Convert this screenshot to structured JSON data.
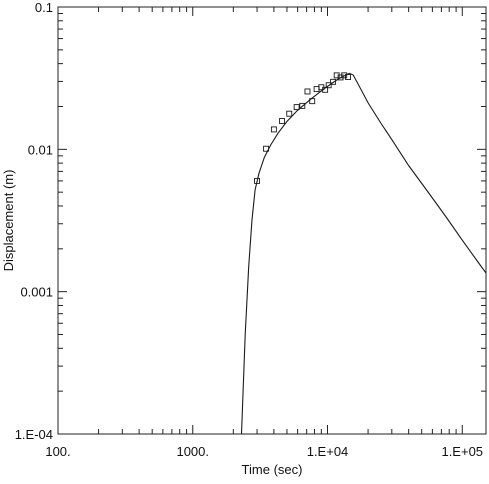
{
  "chart_data": {
    "type": "scatter",
    "xlabel": "Time (sec)",
    "ylabel": "Displacement (m)",
    "xscale": "log",
    "yscale": "log",
    "xlim": [
      100,
      150000
    ],
    "ylim": [
      0.0001,
      0.1
    ],
    "grid": false,
    "x_ticks": [
      {
        "value": 100,
        "label": "100."
      },
      {
        "value": 1000,
        "label": "1000."
      },
      {
        "value": 10000,
        "label": "1.E+04"
      },
      {
        "value": 100000,
        "label": "1.E+05"
      }
    ],
    "y_ticks": [
      {
        "value": 0.0001,
        "label": "1.E-04"
      },
      {
        "value": 0.001,
        "label": "0.001"
      },
      {
        "value": 0.01,
        "label": "0.01"
      },
      {
        "value": 0.1,
        "label": "0.1"
      }
    ],
    "series": [
      {
        "style": "markers",
        "marker": "open-square",
        "x": [
          3000,
          3500,
          4000,
          4600,
          5200,
          5900,
          6500,
          7100,
          7700,
          8300,
          9000,
          9600,
          10200,
          11000,
          11700,
          12500,
          13300,
          14200
        ],
        "y": [
          0.006,
          0.0101,
          0.0138,
          0.0158,
          0.0178,
          0.0198,
          0.0202,
          0.0255,
          0.0218,
          0.0265,
          0.0273,
          0.0262,
          0.0282,
          0.0298,
          0.0331,
          0.032,
          0.0331,
          0.0322
        ]
      },
      {
        "style": "line",
        "x": [
          2300,
          2450,
          2600,
          2750,
          2900,
          3100,
          3400,
          3800,
          4300,
          5000,
          6000,
          7500,
          9500,
          12000,
          14500,
          15500,
          17000,
          20000,
          25000,
          30000,
          40000,
          55000,
          75000,
          100000,
          130000,
          150000
        ],
        "y": [
          0.0001,
          0.0005,
          0.0015,
          0.0032,
          0.0052,
          0.0068,
          0.0088,
          0.0108,
          0.013,
          0.0157,
          0.0188,
          0.0225,
          0.0268,
          0.0312,
          0.0342,
          0.0333,
          0.0283,
          0.0212,
          0.0152,
          0.0117,
          0.0077,
          0.0051,
          0.0034,
          0.0023,
          0.00163,
          0.00135
        ]
      }
    ]
  }
}
